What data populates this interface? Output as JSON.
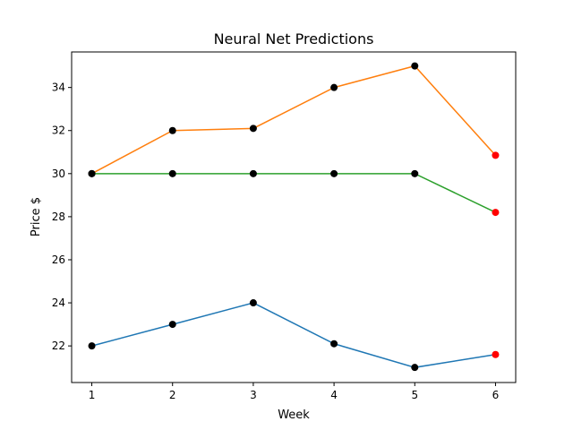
{
  "chart_data": {
    "type": "line",
    "title": "Neural Net Predictions",
    "xlabel": "Week",
    "ylabel": "Price $",
    "xlim": [
      0.75,
      6.25
    ],
    "ylim": [
      20.3,
      35.65
    ],
    "xticks": [
      "1",
      "2",
      "3",
      "4",
      "5",
      "6"
    ],
    "yticks": [
      "22",
      "24",
      "26",
      "28",
      "30",
      "32",
      "34"
    ],
    "grid": false,
    "x": [
      1,
      2,
      3,
      4,
      5,
      6
    ],
    "series": [
      {
        "values": [
          22,
          23,
          24,
          22.1,
          21,
          21.6
        ],
        "color": "#1f77b4"
      },
      {
        "values": [
          30,
          32,
          32.1,
          34,
          35,
          30.85
        ],
        "color": "#ff7f0e"
      },
      {
        "values": [
          30,
          30,
          30,
          30,
          30,
          28.2
        ],
        "color": "#2ca02c"
      }
    ],
    "marker_colors": {
      "observed": "#000000",
      "predicted": "#ff0000"
    },
    "predicted_x": 6
  }
}
